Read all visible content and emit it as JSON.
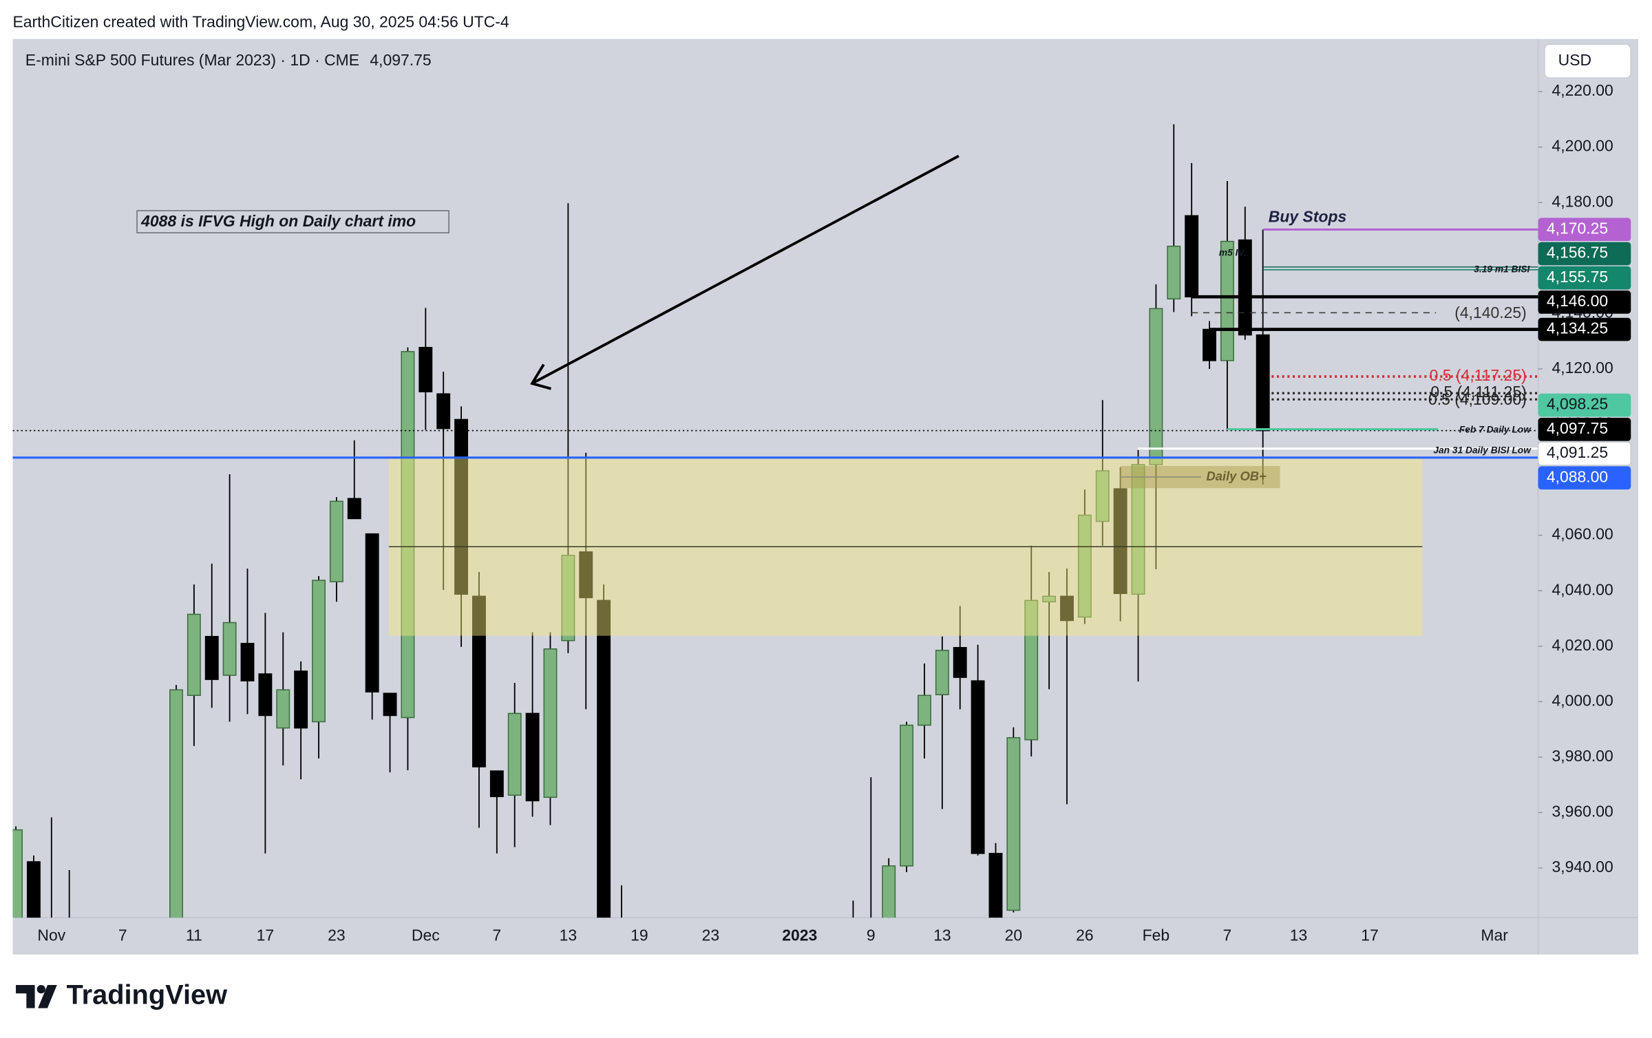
{
  "header": {
    "attribution": "EarthCitizen created with TradingView.com, Aug 30, 2025 04:56 UTC-4",
    "logo": "TradingView"
  },
  "chart_data": {
    "type": "candlestick",
    "title": "E-mini S&P 500 Futures (Mar 2023) · 1D · CME",
    "currency": "USD",
    "last_price": {
      "value": 4097.75,
      "label": "4,097.75",
      "color": "#000000"
    },
    "note": "4088 is IFVG High on Daily chart imo",
    "categories": [
      null,
      null,
      "Nov",
      null,
      null,
      null,
      "7",
      null,
      null,
      null,
      "11",
      null,
      null,
      null,
      "17",
      null,
      null,
      null,
      "23",
      null,
      null,
      null,
      null,
      "Dec",
      null,
      null,
      null,
      "7",
      null,
      null,
      null,
      "13",
      null,
      null,
      null,
      "19",
      null,
      null,
      null,
      "23",
      null,
      null,
      null,
      null,
      "2023",
      null,
      null,
      null,
      "9",
      null,
      null,
      null,
      "13",
      null,
      null,
      null,
      "20",
      null,
      null,
      null,
      "26",
      null,
      null,
      null,
      "Feb",
      null,
      null,
      null,
      "7",
      null,
      null,
      null,
      "13",
      null,
      null,
      null,
      "17",
      null,
      null,
      null,
      null,
      null,
      null,
      "Mar"
    ],
    "open": [
      3915,
      3942.25,
      3915,
      3915,
      null,
      null,
      null,
      null,
      null,
      3880,
      4002.25,
      4023.5,
      4009.5,
      4021,
      4010,
      3990.5,
      4011,
      3992.75,
      4043.25,
      4073.25,
      4060.5,
      4003,
      3994.25,
      4127.75,
      4111,
      4101.75,
      4038,
      3975,
      3966.25,
      3995.75,
      3965.5,
      4022,
      4054,
      4036.5,
      3905,
      null,
      null,
      null,
      null,
      null,
      null,
      null,
      null,
      null,
      null,
      null,
      null,
      3890,
      3920,
      3918,
      3940.75,
      3991.5,
      4002.5,
      4019.5,
      4007.5,
      3945.25,
      3924.75,
      3986.25,
      4036,
      4038,
      4030.5,
      4065,
      4076.75,
      4038.75,
      4085.5,
      4145.25,
      4175.25,
      4134.25,
      4123,
      4166.5,
      4132.25,
      null,
      null,
      null,
      null,
      null,
      null,
      null,
      null,
      null,
      null,
      null,
      null,
      null
    ],
    "high": [
      3955,
      3944.5,
      3958.25,
      3939.25,
      null,
      null,
      null,
      null,
      null,
      4006,
      4042.25,
      4049.75,
      4082,
      4048,
      4032,
      4025,
      4014.5,
      4045.25,
      4073.75,
      4094.25,
      4060.5,
      4003,
      4127.75,
      4142,
      4119,
      4106.5,
      4046.75,
      3975,
      4006.75,
      4025,
      4025,
      4179.75,
      4089.75,
      4042.25,
      3933.75,
      null,
      null,
      null,
      null,
      null,
      null,
      null,
      null,
      null,
      null,
      null,
      null,
      3928.25,
      3972.75,
      3943.5,
      3992.75,
      4013.75,
      4023.5,
      4034.5,
      4020.5,
      3949,
      3990.75,
      4056.25,
      4046.75,
      4048,
      4076.5,
      4108.75,
      4084.5,
      4090.75,
      4150.5,
      4208.25,
      4194.25,
      4137.25,
      4187.75,
      4178.5,
      4170.25,
      null,
      null,
      null,
      null,
      null,
      null,
      null,
      null,
      null,
      null,
      null,
      null,
      null
    ],
    "low": [
      3910,
      3905,
      3890,
      3875,
      null,
      null,
      null,
      null,
      null,
      3875,
      3984,
      3997.75,
      3992.75,
      3995.5,
      3945.25,
      3977,
      3972,
      3979.5,
      4036,
      4066,
      3993.5,
      3974.5,
      3975.25,
      4098,
      4040.25,
      4019.75,
      3954.5,
      3945.25,
      3947.5,
      3958.5,
      3955.5,
      4017.5,
      3997.25,
      3895,
      3885,
      null,
      null,
      null,
      null,
      null,
      null,
      null,
      null,
      null,
      null,
      null,
      null,
      3880,
      3905,
      3905,
      3938.5,
      3979.5,
      3961.25,
      3997.25,
      3944.5,
      3905,
      3924,
      3980.25,
      4004.5,
      3963,
      4028,
      4056.25,
      4029,
      4007.25,
      4047.75,
      4140.5,
      4139,
      4120,
      4098.25,
      4130.5,
      4078.25,
      null,
      null,
      null,
      null,
      null,
      null,
      null,
      null,
      null,
      null,
      null,
      null,
      null
    ],
    "close": [
      3953.75,
      3915,
      3905,
      3880,
      null,
      null,
      null,
      null,
      null,
      4004.25,
      4031.5,
      4008,
      4028.5,
      4007.5,
      3995,
      4004.25,
      3990.5,
      4043.75,
      4072.25,
      4066,
      4003.5,
      3995,
      4126.25,
      4111.75,
      4098.5,
      4038.75,
      3976.5,
      3965.75,
      3995.75,
      3964.25,
      4019,
      4052.75,
      4037.5,
      3900,
      3895,
      null,
      null,
      null,
      null,
      null,
      null,
      null,
      null,
      null,
      null,
      null,
      null,
      3915,
      3916,
      3940.75,
      3991.5,
      4002.25,
      4018.5,
      4008.75,
      3945.25,
      3915,
      3987,
      4036.5,
      4038,
      4029.25,
      4067.25,
      4083.25,
      4039,
      4085.5,
      4141.75,
      4164.25,
      4146,
      4123,
      4166,
      4132.25,
      4097.75,
      null,
      null,
      null,
      null,
      null,
      null,
      null,
      null,
      null,
      null,
      null,
      null,
      null
    ],
    "up_color": "#7db37f",
    "down_color": "#000000",
    "ylim": [
      3922,
      4238
    ],
    "yticks": [
      {
        "value": 3940,
        "label": "3,940.00"
      },
      {
        "value": 3960,
        "label": "3,960.00"
      },
      {
        "value": 3980,
        "label": "3,980.00"
      },
      {
        "value": 4000,
        "label": "4,000.00"
      },
      {
        "value": 4020,
        "label": "4,020.00"
      },
      {
        "value": 4040,
        "label": "4,040.00"
      },
      {
        "value": 4060,
        "label": "4,060.00"
      },
      {
        "value": 4080,
        "label": "4,080.00"
      },
      {
        "value": 4100,
        "label": "4,100.00"
      },
      {
        "value": 4120,
        "label": "4,120.00"
      },
      {
        "value": 4140,
        "label": "4,140.00"
      },
      {
        "value": 4160,
        "label": "4,160.00"
      },
      {
        "value": 4180,
        "label": "4,180.00"
      },
      {
        "value": 4200,
        "label": "4,200.00"
      },
      {
        "value": 4220,
        "label": "4,220.00"
      }
    ],
    "grid": false,
    "levels": [
      {
        "value": 4170.25,
        "label": "4,170.25",
        "color": "#b462d2",
        "text": "Buy Stops"
      },
      {
        "value": 4156.75,
        "label": "4,156.75",
        "color": "#0d6b56",
        "text": "m5 IV."
      },
      {
        "value": 4155.75,
        "label": "4,155.75",
        "color": "#13866b",
        "text": "3.19 m1 BISI"
      },
      {
        "value": 4146,
        "label": "4,146.00",
        "color": "#000000"
      },
      {
        "value": 4134.25,
        "label": "4,134.25",
        "color": "#000000"
      },
      {
        "value": 4098.25,
        "label": "4,098.25",
        "color": "#4fc7a0",
        "text": "Feb 7 Daily Low"
      },
      {
        "value": 4091.25,
        "label": "4,091.25",
        "color": "#ffffff",
        "text": "Jan 31 Daily BISI Low"
      },
      {
        "value": 4088,
        "label": "4,088.00",
        "color": "#2962ff"
      }
    ],
    "fib_levels": [
      {
        "value": 4140.25,
        "label": "(4,140.25)",
        "color": "#333333"
      },
      {
        "value": 4117.25,
        "label": "0.5 (4,117.25)",
        "color": "#d0303a"
      },
      {
        "value": 4111.25,
        "label": "0.5 (4,111.25)",
        "color": "#222222"
      },
      {
        "value": 4109,
        "label": "0.5 (4,109.00)",
        "color": "#222222"
      }
    ],
    "zone": {
      "top": 4088,
      "bottom": 4023.75,
      "mid": 4055.875,
      "color": "#f6e97a"
    },
    "order_block": {
      "label": "Daily OB+",
      "top": 4085,
      "bottom": 4077
    }
  }
}
